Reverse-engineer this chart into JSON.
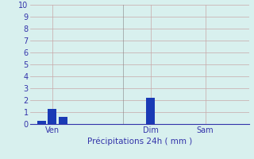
{
  "bar_positions": [
    0.5,
    1.5,
    2.5,
    10.5,
    15.5
  ],
  "bar_heights": [
    0.3,
    1.3,
    0.6,
    2.2,
    0.0
  ],
  "bar_color": "#1a3ab5",
  "bar_width": 0.8,
  "ylim": [
    0,
    10
  ],
  "yticks": [
    0,
    1,
    2,
    3,
    4,
    5,
    6,
    7,
    8,
    9,
    10
  ],
  "xlabel": "Précipitations 24h ( mm )",
  "background_color": "#d8f0ee",
  "grid_color_h": "#c8a8a8",
  "grid_color_v": "#c8a8a8",
  "tick_label_color": "#3333aa",
  "xlabel_color": "#3333aa",
  "xtick_positions": [
    1.5,
    10.5,
    15.5
  ],
  "xtick_labels": [
    "Ven",
    "Dim",
    "Sam"
  ],
  "vline_x": 8.0,
  "vline_color": "#888888",
  "xlim": [
    -0.5,
    19.5
  ],
  "figsize": [
    3.2,
    2.0
  ],
  "dpi": 100
}
